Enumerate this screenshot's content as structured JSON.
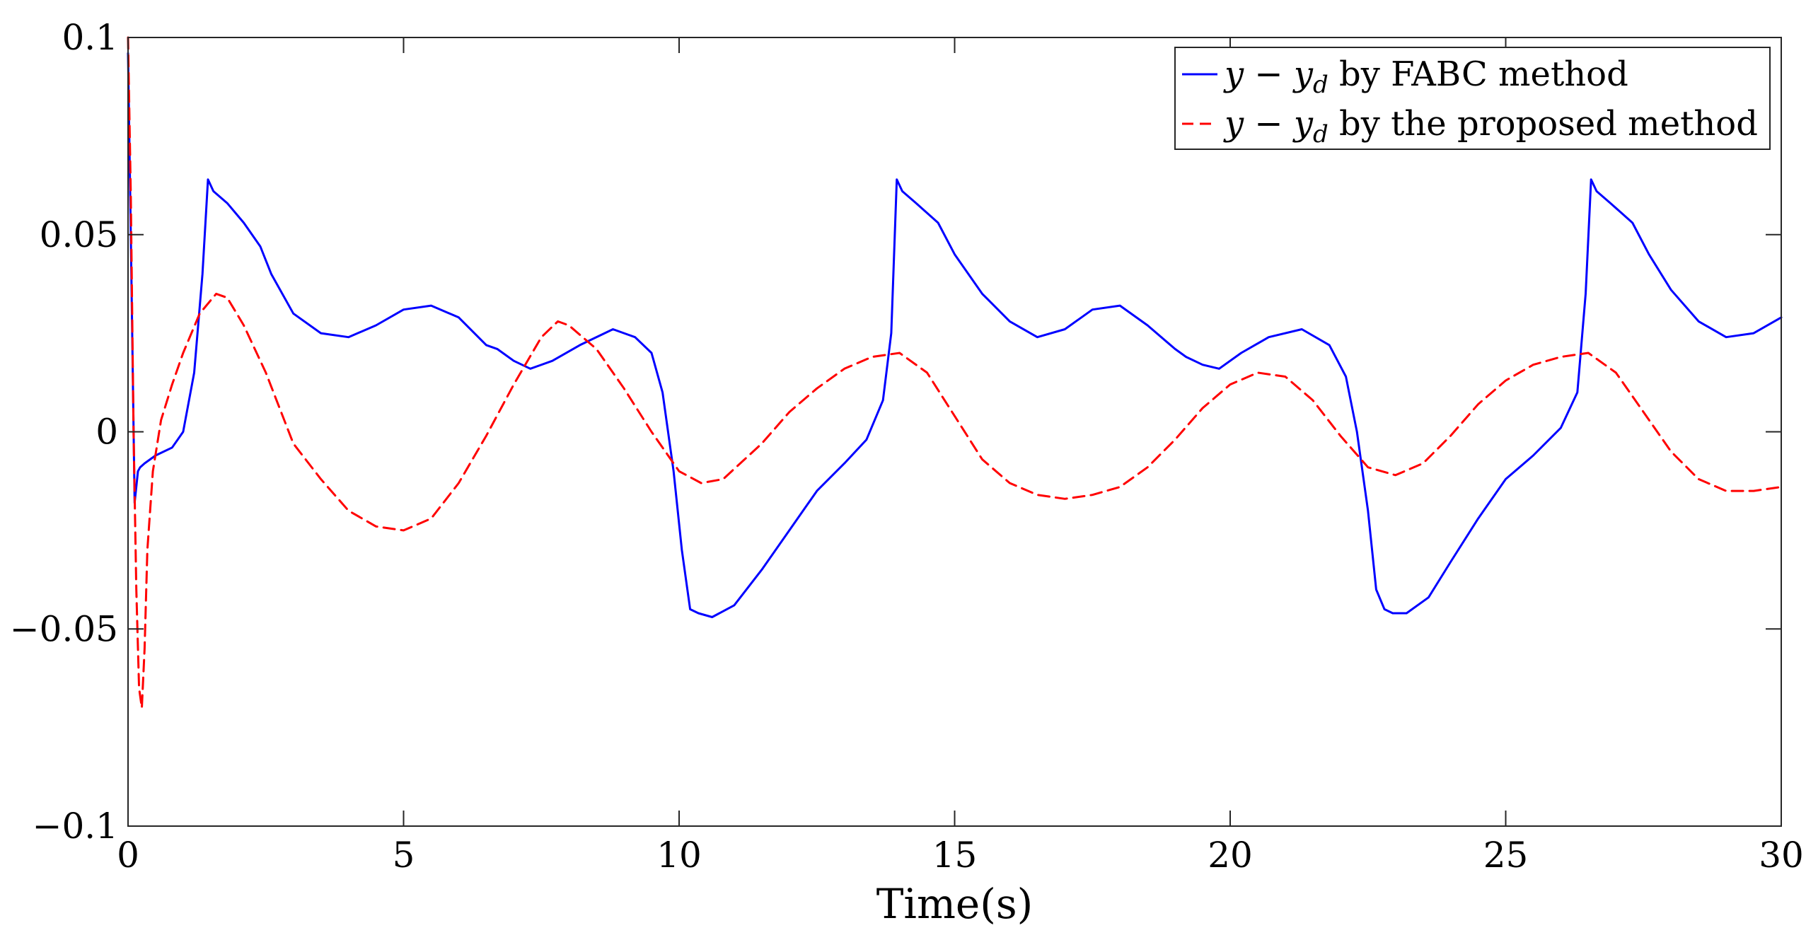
{
  "chart_data": {
    "type": "line",
    "title": "",
    "xlabel": "Time(s)",
    "ylabel": "",
    "xlim": [
      0,
      30
    ],
    "ylim": [
      -0.1,
      0.1
    ],
    "xticks": [
      0,
      5,
      10,
      15,
      20,
      25,
      30
    ],
    "yticks": [
      -0.1,
      -0.05,
      0,
      0.05,
      0.1
    ],
    "xtick_labels": [
      "0",
      "5",
      "10",
      "15",
      "20",
      "25",
      "30"
    ],
    "ytick_labels": [
      "−0.1",
      "−0.05",
      "0",
      "0.05",
      "0.1"
    ],
    "grid": false,
    "legend_position": "top-right",
    "series": [
      {
        "name": "y − y_d by FABC method",
        "legend_main": "y − y",
        "legend_sub": "d",
        "legend_rest": " by FABC method",
        "color": "#0000ff",
        "style": "solid",
        "x": [
          0,
          0.05,
          0.12,
          0.18,
          0.22,
          0.3,
          0.5,
          0.8,
          1.0,
          1.2,
          1.35,
          1.45,
          1.55,
          1.8,
          2.1,
          2.4,
          2.6,
          3.0,
          3.5,
          4.0,
          4.5,
          5.0,
          5.5,
          6.0,
          6.5,
          6.7,
          7.0,
          7.3,
          7.7,
          8.2,
          8.8,
          9.2,
          9.5,
          9.7,
          9.9,
          10.05,
          10.2,
          10.35,
          10.6,
          11.0,
          11.5,
          12.0,
          12.5,
          13.0,
          13.4,
          13.7,
          13.85,
          13.95,
          14.05,
          14.3,
          14.7,
          15.0,
          15.5,
          16.0,
          16.5,
          17.0,
          17.5,
          18.0,
          18.5,
          19.0,
          19.2,
          19.5,
          19.8,
          20.2,
          20.7,
          21.3,
          21.8,
          22.1,
          22.3,
          22.5,
          22.65,
          22.8,
          22.95,
          23.2,
          23.6,
          24.0,
          24.5,
          25.0,
          25.5,
          26.0,
          26.3,
          26.45,
          26.55,
          26.65,
          26.9,
          27.3,
          27.6,
          28.0,
          28.5,
          29.0,
          29.5,
          30.0
        ],
        "y": [
          0.096,
          0.05,
          -0.018,
          -0.01,
          -0.009,
          -0.008,
          -0.006,
          -0.004,
          0.0,
          0.015,
          0.04,
          0.064,
          0.061,
          0.058,
          0.053,
          0.047,
          0.04,
          0.03,
          0.025,
          0.024,
          0.027,
          0.031,
          0.032,
          0.029,
          0.022,
          0.021,
          0.018,
          0.016,
          0.018,
          0.022,
          0.026,
          0.024,
          0.02,
          0.01,
          -0.01,
          -0.03,
          -0.045,
          -0.046,
          -0.047,
          -0.044,
          -0.035,
          -0.025,
          -0.015,
          -0.008,
          -0.002,
          0.008,
          0.025,
          0.064,
          0.061,
          0.058,
          0.053,
          0.045,
          0.035,
          0.028,
          0.024,
          0.026,
          0.031,
          0.032,
          0.027,
          0.021,
          0.019,
          0.017,
          0.016,
          0.02,
          0.024,
          0.026,
          0.022,
          0.014,
          0.0,
          -0.02,
          -0.04,
          -0.045,
          -0.046,
          -0.046,
          -0.042,
          -0.033,
          -0.022,
          -0.012,
          -0.006,
          0.001,
          0.01,
          0.035,
          0.064,
          0.061,
          0.058,
          0.053,
          0.045,
          0.036,
          0.028,
          0.024,
          0.025,
          0.029
        ]
      },
      {
        "name": "y − y_d by the proposed method",
        "legend_main": "y − y",
        "legend_sub": "d",
        "legend_rest": " by the proposed method",
        "color": "#ff0000",
        "style": "dashed",
        "x": [
          0,
          0.05,
          0.1,
          0.15,
          0.2,
          0.25,
          0.3,
          0.35,
          0.45,
          0.6,
          0.8,
          1.0,
          1.3,
          1.6,
          1.8,
          2.1,
          2.5,
          3.0,
          3.5,
          4.0,
          4.5,
          5.0,
          5.5,
          6.0,
          6.5,
          7.0,
          7.5,
          7.8,
          8.0,
          8.5,
          9.0,
          9.5,
          10.0,
          10.4,
          10.8,
          11.5,
          12.0,
          12.5,
          13.0,
          13.5,
          14.0,
          14.5,
          15.0,
          15.5,
          16.0,
          16.5,
          17.0,
          17.5,
          18.0,
          18.5,
          19.0,
          19.5,
          20.0,
          20.5,
          21.0,
          21.5,
          22.0,
          22.5,
          23.0,
          23.5,
          24.0,
          24.5,
          25.0,
          25.5,
          26.0,
          26.5,
          27.0,
          27.5,
          28.0,
          28.5,
          29.0,
          29.5,
          30.0
        ],
        "y": [
          0.1,
          0.06,
          0.0,
          -0.04,
          -0.065,
          -0.07,
          -0.055,
          -0.03,
          -0.01,
          0.003,
          0.012,
          0.02,
          0.03,
          0.035,
          0.034,
          0.027,
          0.015,
          -0.003,
          -0.012,
          -0.02,
          -0.024,
          -0.025,
          -0.022,
          -0.013,
          -0.001,
          0.012,
          0.024,
          0.028,
          0.027,
          0.021,
          0.011,
          0.0,
          -0.01,
          -0.013,
          -0.012,
          -0.003,
          0.005,
          0.011,
          0.016,
          0.019,
          0.02,
          0.015,
          0.004,
          -0.007,
          -0.013,
          -0.016,
          -0.017,
          -0.016,
          -0.014,
          -0.009,
          -0.002,
          0.006,
          0.012,
          0.015,
          0.014,
          0.008,
          -0.001,
          -0.009,
          -0.011,
          -0.008,
          -0.001,
          0.007,
          0.013,
          0.017,
          0.019,
          0.02,
          0.015,
          0.005,
          -0.005,
          -0.012,
          -0.015,
          -0.015,
          -0.014
        ]
      }
    ]
  }
}
